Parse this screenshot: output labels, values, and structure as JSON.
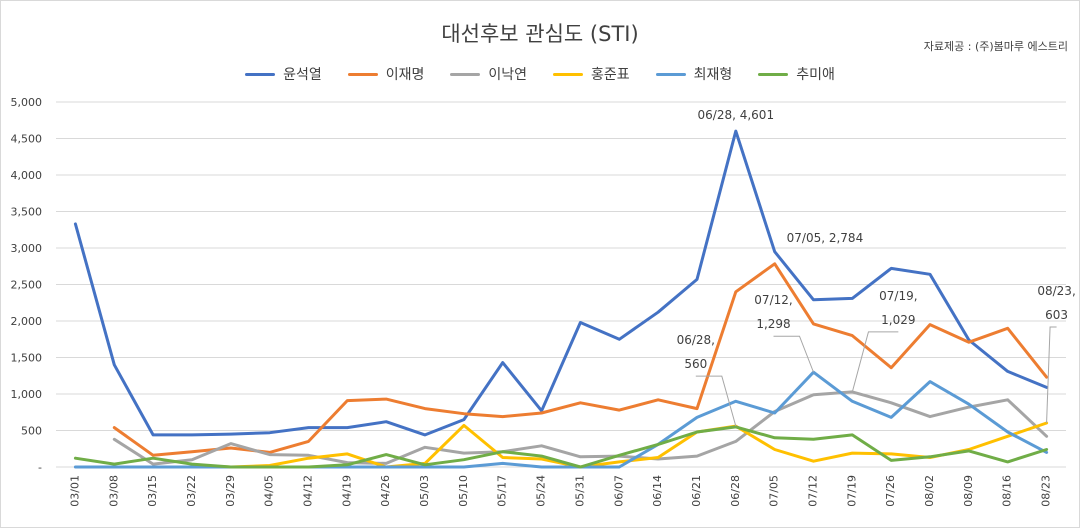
{
  "chart_data": {
    "type": "line",
    "title": "대선후보 관심도 (STI)",
    "source_note": "자료제공 : (주)봄마루 에스트리",
    "xlabel": "",
    "ylabel": "",
    "ylim": [
      0,
      5000
    ],
    "yticks": [
      "-",
      "500",
      "1,000",
      "1,500",
      "2,000",
      "2,500",
      "3,000",
      "3,500",
      "4,000",
      "4,500",
      "5,000"
    ],
    "ytick_values": [
      0,
      500,
      1000,
      1500,
      2000,
      2500,
      3000,
      3500,
      4000,
      4500,
      5000
    ],
    "legend_position": "top-center",
    "grid": true,
    "categories": [
      "03/01",
      "03/08",
      "03/15",
      "03/22",
      "03/29",
      "04/05",
      "04/12",
      "04/19",
      "04/26",
      "05/03",
      "05/10",
      "05/17",
      "05/24",
      "05/31",
      "06/07",
      "06/14",
      "06/21",
      "06/28",
      "07/05",
      "07/12",
      "07/19",
      "07/26",
      "08/02",
      "08/09",
      "08/16",
      "08/23"
    ],
    "series": [
      {
        "name": "윤석열",
        "color": "#4472C4",
        "values": [
          3330,
          1400,
          440,
          440,
          450,
          470,
          540,
          540,
          620,
          440,
          650,
          1430,
          770,
          1980,
          1750,
          2120,
          2570,
          4601,
          2950,
          2290,
          2310,
          2720,
          2640,
          1740,
          1310,
          1090
        ]
      },
      {
        "name": "이재명",
        "color": "#ED7D31",
        "values": [
          null,
          540,
          160,
          210,
          260,
          200,
          350,
          910,
          930,
          800,
          730,
          690,
          740,
          880,
          780,
          920,
          800,
          2400,
          2784,
          1960,
          1800,
          1360,
          1950,
          1710,
          1900,
          1230
        ]
      },
      {
        "name": "이낙연",
        "color": "#A5A5A5",
        "values": [
          null,
          380,
          40,
          100,
          320,
          170,
          160,
          60,
          50,
          270,
          190,
          210,
          290,
          140,
          150,
          110,
          150,
          350,
          760,
          990,
          1029,
          880,
          690,
          820,
          920,
          420
        ]
      },
      {
        "name": "홍준표",
        "color": "#FFC000",
        "values": [
          null,
          null,
          null,
          20,
          0,
          20,
          120,
          180,
          0,
          50,
          570,
          130,
          110,
          0,
          70,
          130,
          480,
          560,
          240,
          80,
          190,
          180,
          130,
          240,
          420,
          603
        ]
      },
      {
        "name": "최재형",
        "color": "#5B9BD5",
        "values": [
          0,
          0,
          0,
          0,
          0,
          0,
          0,
          0,
          0,
          0,
          0,
          50,
          0,
          0,
          0,
          310,
          680,
          900,
          740,
          1298,
          900,
          680,
          1170,
          860,
          480,
          200
        ]
      },
      {
        "name": "추미애",
        "color": "#70AD47",
        "values": [
          120,
          40,
          120,
          40,
          0,
          0,
          0,
          30,
          170,
          30,
          100,
          210,
          150,
          0,
          160,
          310,
          480,
          550,
          400,
          380,
          440,
          90,
          140,
          220,
          70,
          240
        ]
      }
    ],
    "annotations": [
      {
        "series": "윤석열",
        "category": "06/28",
        "text": "06/28,  4,601"
      },
      {
        "series": "이재명",
        "category": "07/05",
        "text": "07/05,  2,784"
      },
      {
        "series": "홍준표",
        "category": "06/28",
        "text_lines": [
          "06/28,",
          "560"
        ]
      },
      {
        "series": "최재형",
        "category": "07/12",
        "text_lines": [
          "07/12,",
          "1,298"
        ]
      },
      {
        "series": "이낙연",
        "category": "07/19",
        "text_lines": [
          "07/19,",
          "1,029"
        ]
      },
      {
        "series": "홍준표",
        "category": "08/23",
        "text_lines": [
          "08/23,",
          "603"
        ]
      }
    ]
  }
}
